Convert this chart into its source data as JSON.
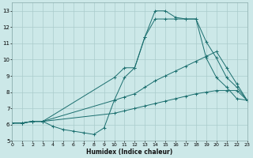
{
  "xlabel": "Humidex (Indice chaleur)",
  "xlim": [
    0,
    23
  ],
  "ylim": [
    5,
    13.5
  ],
  "yticks": [
    5,
    6,
    7,
    8,
    9,
    10,
    11,
    12,
    13
  ],
  "xticks": [
    0,
    1,
    2,
    3,
    4,
    5,
    6,
    7,
    8,
    9,
    10,
    11,
    12,
    13,
    14,
    15,
    16,
    17,
    18,
    19,
    20,
    21,
    22,
    23
  ],
  "background_color": "#cce8e8",
  "grid_color": "#aacccc",
  "line_color": "#1a6e6e",
  "lines": [
    {
      "x": [
        0,
        1,
        2,
        3,
        4,
        5,
        6,
        7,
        8,
        9,
        10,
        11,
        12,
        13,
        14,
        15,
        16,
        17,
        18,
        19,
        20,
        21,
        22,
        23
      ],
      "y": [
        6.1,
        6.1,
        6.2,
        6.2,
        5.9,
        5.7,
        5.6,
        5.5,
        5.4,
        5.8,
        7.5,
        8.9,
        9.5,
        11.4,
        13.0,
        13.0,
        12.6,
        12.5,
        12.5,
        10.1,
        8.9,
        8.3,
        7.6,
        7.5
      ]
    },
    {
      "x": [
        0,
        1,
        2,
        3,
        10,
        11,
        12,
        13,
        14,
        15,
        16,
        17,
        18,
        19,
        20,
        21,
        22,
        23
      ],
      "y": [
        6.1,
        6.1,
        6.2,
        6.2,
        8.9,
        9.5,
        9.5,
        11.4,
        12.5,
        12.5,
        12.5,
        12.5,
        12.5,
        11.1,
        10.1,
        8.9,
        8.3,
        7.5
      ]
    },
    {
      "x": [
        0,
        1,
        2,
        3,
        10,
        11,
        12,
        13,
        14,
        15,
        16,
        17,
        18,
        19,
        20,
        21,
        22,
        23
      ],
      "y": [
        6.1,
        6.1,
        6.2,
        6.2,
        7.5,
        7.7,
        7.9,
        8.3,
        8.7,
        9.0,
        9.3,
        9.6,
        9.9,
        10.2,
        10.5,
        9.5,
        8.5,
        7.5
      ]
    },
    {
      "x": [
        0,
        1,
        2,
        3,
        10,
        11,
        12,
        13,
        14,
        15,
        16,
        17,
        18,
        19,
        20,
        21,
        22,
        23
      ],
      "y": [
        6.1,
        6.1,
        6.2,
        6.2,
        6.7,
        6.85,
        7.0,
        7.15,
        7.3,
        7.45,
        7.6,
        7.75,
        7.9,
        8.0,
        8.1,
        8.1,
        8.1,
        7.5
      ]
    }
  ]
}
